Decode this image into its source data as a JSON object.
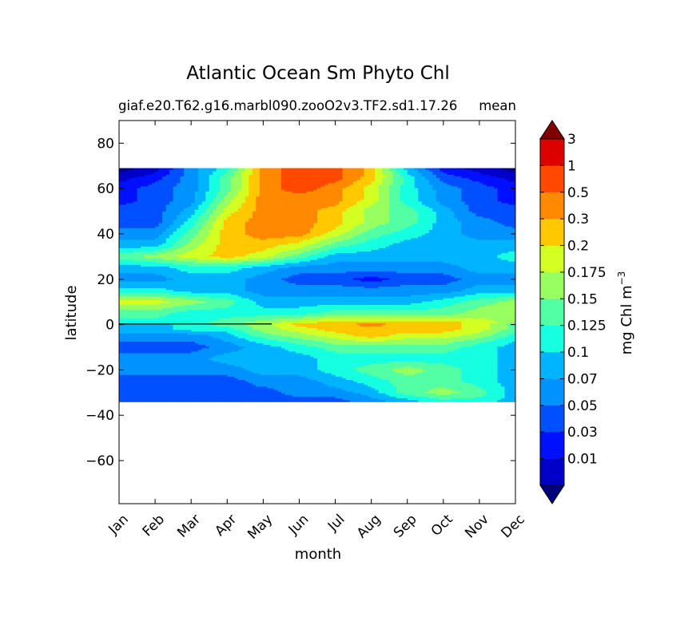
{
  "chart_data": {
    "type": "heatmap",
    "plot_style": "filled-contour (Hovmoller)",
    "title": "Atlantic Ocean Sm Phyto Chl",
    "subtitle_left": "giaf.e20.T62.g16.marbl090.zooO2v3.TF2.sd1.17.26",
    "subtitle_right": "mean",
    "xlabel": "month",
    "ylabel": "latitude",
    "x_categories": [
      "Jan",
      "Feb",
      "Mar",
      "Apr",
      "May",
      "Jun",
      "Jul",
      "Aug",
      "Sep",
      "Oct",
      "Nov",
      "Dec"
    ],
    "ylim": [
      -79,
      90
    ],
    "y_ticks": [
      80,
      60,
      40,
      20,
      0,
      -20,
      -40,
      -60
    ],
    "y_tick_labels": [
      "80",
      "60",
      "40",
      "20",
      "0",
      "−20",
      "−40",
      "−60"
    ],
    "data_lat_range": [
      -34,
      69
    ],
    "colorbar": {
      "label": "mg Chl m",
      "label_exponent": "−3",
      "extend": "both",
      "levels": [
        0.01,
        0.03,
        0.05,
        0.07,
        0.1,
        0.125,
        0.15,
        0.175,
        0.2,
        0.3,
        0.5,
        1,
        3
      ],
      "tick_labels": [
        "0.01",
        "0.03",
        "0.05",
        "0.07",
        "0.1",
        "0.125",
        "0.15",
        "0.175",
        "0.2",
        "0.3",
        "0.5",
        "1",
        "3"
      ],
      "colors": [
        "#00007f",
        "#0000c8",
        "#0010ff",
        "#0050ff",
        "#0092ff",
        "#00b4ff",
        "#16ffe1",
        "#53ffa4",
        "#97ff60",
        "#d4ff23",
        "#ffc800",
        "#ff8900",
        "#ff4800",
        "#dd0000",
        "#800000"
      ]
    },
    "field": {
      "months": [
        0,
        1,
        2,
        3,
        4,
        5,
        6,
        7,
        8,
        9,
        10,
        11
      ],
      "latitudes": [
        69,
        65,
        60,
        55,
        50,
        45,
        40,
        35,
        30,
        25,
        20,
        15,
        10,
        5,
        1,
        0,
        -2,
        -5,
        -10,
        -15,
        -20,
        -25,
        -30,
        -34
      ],
      "level_index_by_month": [
        [
          0,
          1,
          4,
          6,
          11,
          12,
          12,
          10,
          5,
          2,
          1,
          0
        ],
        [
          1,
          2,
          4,
          7,
          11,
          12,
          12,
          10,
          6,
          3,
          2,
          1
        ],
        [
          2,
          3,
          4,
          7,
          11,
          12,
          11,
          9,
          6,
          4,
          3,
          2
        ],
        [
          2,
          3,
          4,
          8,
          11,
          11,
          11,
          9,
          6,
          4,
          3,
          2
        ],
        [
          3,
          3,
          5,
          9,
          11,
          11,
          10,
          8,
          7,
          5,
          3,
          3
        ],
        [
          3,
          3,
          6,
          10,
          11,
          11,
          10,
          8,
          7,
          5,
          4,
          3
        ],
        [
          4,
          4,
          7,
          10,
          11,
          11,
          9,
          7,
          6,
          5,
          4,
          4
        ],
        [
          5,
          5,
          8,
          10,
          10,
          9,
          7,
          6,
          5,
          5,
          5,
          5
        ],
        [
          7,
          8,
          9,
          10,
          9,
          7,
          5,
          5,
          5,
          5,
          5,
          6
        ],
        [
          5,
          5,
          6,
          6,
          5,
          4,
          4,
          4,
          4,
          4,
          5,
          5
        ],
        [
          4,
          4,
          5,
          5,
          4,
          3,
          3,
          2,
          3,
          3,
          4,
          4
        ],
        [
          6,
          6,
          5,
          5,
          4,
          4,
          4,
          4,
          4,
          4,
          5,
          5
        ],
        [
          9,
          9,
          8,
          7,
          5,
          5,
          5,
          5,
          5,
          6,
          7,
          8
        ],
        [
          7,
          7,
          6,
          6,
          6,
          6,
          7,
          7,
          7,
          7,
          8,
          8
        ],
        [
          6,
          6,
          6,
          7,
          8,
          9,
          10,
          10,
          10,
          10,
          9,
          8
        ],
        [
          5,
          5,
          6,
          7,
          8,
          10,
          10,
          11,
          10,
          10,
          9,
          7
        ],
        [
          5,
          5,
          6,
          6,
          8,
          9,
          10,
          10,
          10,
          10,
          9,
          7
        ],
        [
          4,
          4,
          4,
          5,
          7,
          8,
          9,
          10,
          9,
          9,
          8,
          6
        ],
        [
          3,
          3,
          3,
          4,
          5,
          6,
          7,
          7,
          7,
          7,
          6,
          5
        ],
        [
          4,
          4,
          4,
          5,
          5,
          5,
          6,
          6,
          6,
          6,
          6,
          5
        ],
        [
          4,
          4,
          4,
          4,
          5,
          5,
          6,
          7,
          8,
          7,
          6,
          5
        ],
        [
          3,
          3,
          3,
          3,
          4,
          4,
          5,
          6,
          7,
          7,
          6,
          5
        ],
        [
          3,
          3,
          3,
          3,
          3,
          4,
          4,
          5,
          7,
          8,
          7,
          5
        ],
        [
          3,
          3,
          3,
          3,
          3,
          3,
          3,
          4,
          5,
          6,
          6,
          5
        ]
      ]
    }
  }
}
